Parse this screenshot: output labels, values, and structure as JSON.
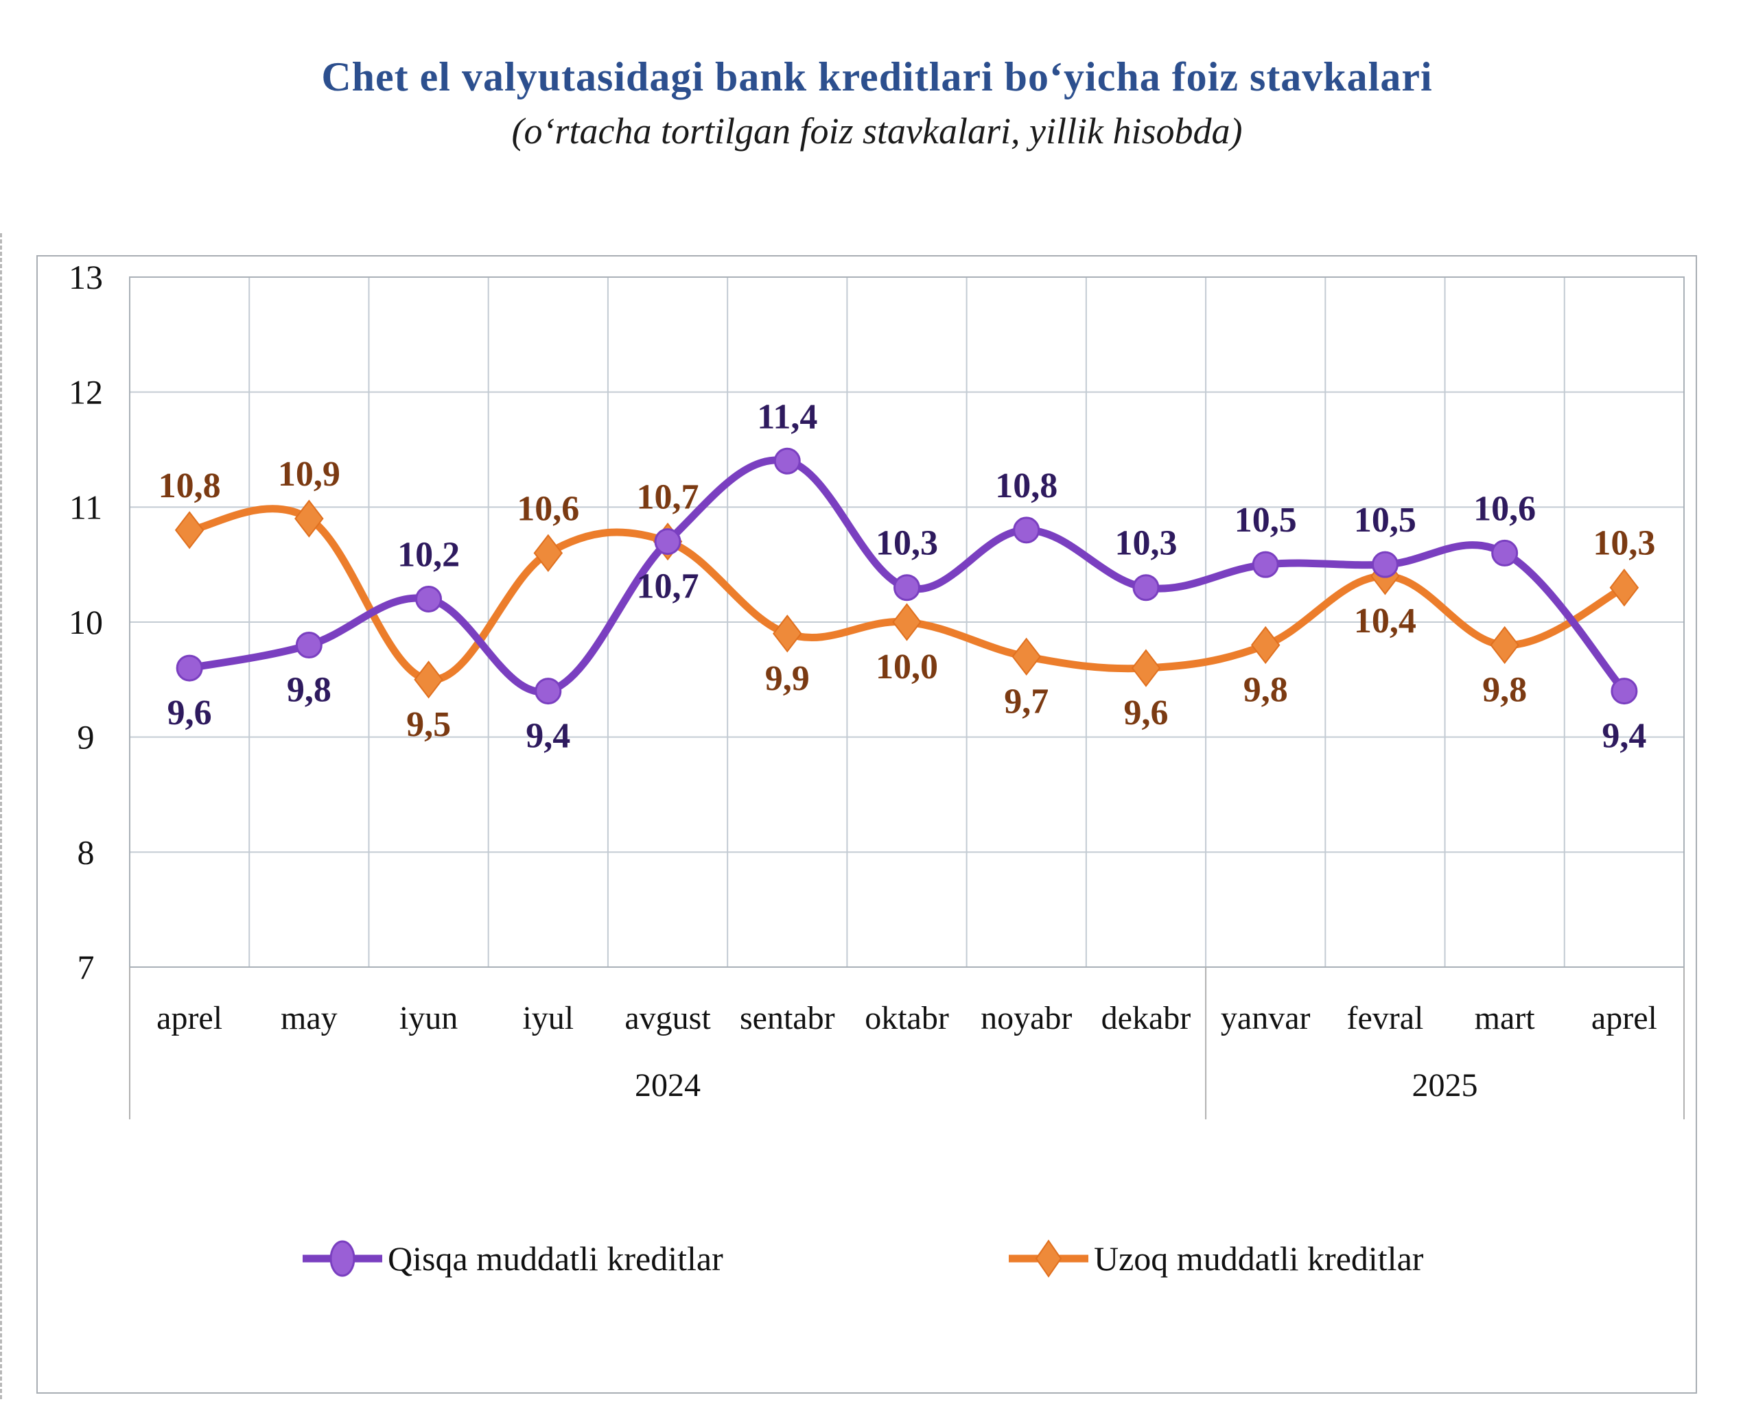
{
  "chart_data": {
    "type": "line",
    "title": "Chet el valyutasidagi bank kreditlari bo‘yicha foiz stavkalari",
    "subtitle": "(o‘rtacha tortilgan foiz stavkalari, yillik hisobda)",
    "xlabel": "",
    "ylabel": "",
    "categories": [
      "aprel",
      "may",
      "iyun",
      "iyul",
      "avgust",
      "sentabr",
      "oktabr",
      "noyabr",
      "dekabr",
      "yanvar",
      "fevral",
      "mart",
      "aprel"
    ],
    "year_groups": [
      {
        "label": "2024",
        "start": 0,
        "end": 8
      },
      {
        "label": "2025",
        "start": 9,
        "end": 12
      }
    ],
    "y_ticks": [
      "7",
      "8",
      "9",
      "10",
      "11",
      "12",
      "13"
    ],
    "ylim": [
      7,
      13
    ],
    "grid": true,
    "legend_position": "bottom",
    "series": [
      {
        "name": "Qisqa muddatli kreditlar",
        "color": "#7a3fc0",
        "marker": "circle",
        "marker_color": "#9a5fd6",
        "label_color": "#2e1a5e",
        "values": [
          9.6,
          9.8,
          10.2,
          9.4,
          10.7,
          11.4,
          10.3,
          10.8,
          10.3,
          10.5,
          10.5,
          10.6,
          9.4
        ],
        "labels": [
          "9,6",
          "9,8",
          "10,2",
          "9,4",
          "10,7",
          "11,4",
          "10,3",
          "10,8",
          "10,3",
          "10,5",
          "10,5",
          "10,6",
          "9,4"
        ],
        "label_positions": [
          "below",
          "below",
          "above",
          "below",
          "below",
          "above",
          "above",
          "above",
          "above",
          "above",
          "above",
          "above",
          "below"
        ]
      },
      {
        "name": "Uzoq muddatli kreditlar",
        "color": "#ec7d2b",
        "marker": "diamond",
        "marker_color": "#ee8a3a",
        "label_color": "#7b3a12",
        "values": [
          10.8,
          10.9,
          9.5,
          10.6,
          10.7,
          9.9,
          10.0,
          9.7,
          9.6,
          9.8,
          10.4,
          9.8,
          10.3
        ],
        "labels": [
          "10,8",
          "10,9",
          "9,5",
          "10,6",
          "10,7",
          "9,9",
          "10,0",
          "9,7",
          "9,6",
          "9,8",
          "10,4",
          "9,8",
          "10,3"
        ],
        "label_positions": [
          "above",
          "above",
          "below",
          "above",
          "above",
          "below",
          "below",
          "below",
          "below",
          "below",
          "below",
          "below",
          "above"
        ]
      }
    ]
  }
}
